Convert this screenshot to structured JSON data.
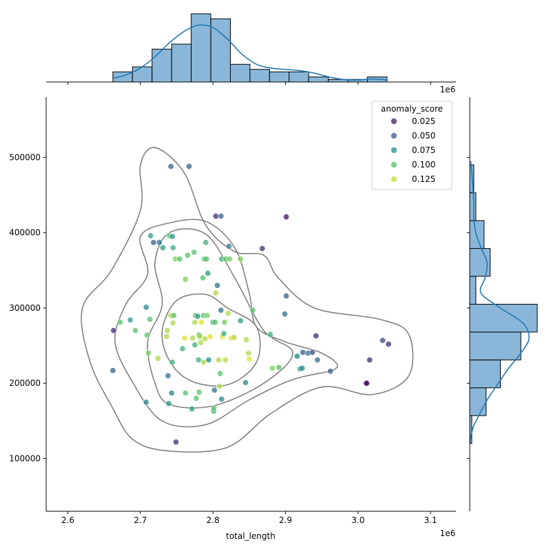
{
  "chart_data": {
    "type": "scatter",
    "title": "",
    "xlabel": "total_length",
    "ylabel": "",
    "x_offset_label": "1e6",
    "top_offset_label": "1e6",
    "xlim": [
      2.57,
      3.135
    ],
    "ylim": [
      30000,
      580000
    ],
    "x_ticks": [
      2.6,
      2.7,
      2.8,
      2.9,
      3.0,
      3.1
    ],
    "x_tick_labels": [
      "2.6",
      "2.7",
      "2.8",
      "2.9",
      "3.0",
      "3.1"
    ],
    "y_ticks": [
      100000,
      200000,
      300000,
      400000,
      500000
    ],
    "y_tick_labels": [
      "100000",
      "200000",
      "300000",
      "400000",
      "500000"
    ],
    "grid": false,
    "legend": {
      "title": "anomaly_score",
      "placement": "top-right",
      "entries": [
        {
          "label": "0.025",
          "value": 0.025
        },
        {
          "label": "0.050",
          "value": 0.05
        },
        {
          "label": "0.075",
          "value": 0.075
        },
        {
          "label": "0.100",
          "value": 0.1
        },
        {
          "label": "0.125",
          "value": 0.125
        }
      ]
    },
    "colors": {
      "hist_fill": "#8ab7d9",
      "kde_line": "#1f77b4",
      "contour": "#808080",
      "viridis": [
        "#440154",
        "#3b528b",
        "#21918c",
        "#5ec962",
        "#fde725"
      ]
    },
    "points": [
      {
        "x": 2.663,
        "y": 270000,
        "s": 0.03
      },
      {
        "x": 2.662,
        "y": 217000,
        "s": 0.05
      },
      {
        "x": 2.672,
        "y": 281000,
        "s": 0.1
      },
      {
        "x": 2.686,
        "y": 284000,
        "s": 0.08
      },
      {
        "x": 2.693,
        "y": 270000,
        "s": 0.1
      },
      {
        "x": 2.708,
        "y": 175000,
        "s": 0.07
      },
      {
        "x": 2.708,
        "y": 301000,
        "s": 0.07
      },
      {
        "x": 2.709,
        "y": 264000,
        "s": 0.1
      },
      {
        "x": 2.711,
        "y": 240000,
        "s": 0.11
      },
      {
        "x": 2.713,
        "y": 285000,
        "s": 0.1
      },
      {
        "x": 2.714,
        "y": 396000,
        "s": 0.08
      },
      {
        "x": 2.718,
        "y": 387000,
        "s": 0.05
      },
      {
        "x": 2.724,
        "y": 233000,
        "s": 0.12
      },
      {
        "x": 2.726,
        "y": 387000,
        "s": 0.06
      },
      {
        "x": 2.731,
        "y": 380000,
        "s": 0.08
      },
      {
        "x": 2.736,
        "y": 262000,
        "s": 0.12
      },
      {
        "x": 2.737,
        "y": 270000,
        "s": 0.12
      },
      {
        "x": 2.738,
        "y": 210000,
        "s": 0.06
      },
      {
        "x": 2.739,
        "y": 173000,
        "s": 0.08
      },
      {
        "x": 2.74,
        "y": 396000,
        "s": 0.1
      },
      {
        "x": 2.742,
        "y": 290000,
        "s": 0.12
      },
      {
        "x": 2.742,
        "y": 488000,
        "s": 0.05
      },
      {
        "x": 2.743,
        "y": 187000,
        "s": 0.07
      },
      {
        "x": 2.744,
        "y": 395000,
        "s": 0.08
      },
      {
        "x": 2.744,
        "y": 228000,
        "s": 0.09
      },
      {
        "x": 2.745,
        "y": 280000,
        "s": 0.12
      },
      {
        "x": 2.745,
        "y": 380000,
        "s": 0.09
      },
      {
        "x": 2.746,
        "y": 290000,
        "s": 0.1
      },
      {
        "x": 2.748,
        "y": 365000,
        "s": 0.11
      },
      {
        "x": 2.749,
        "y": 122000,
        "s": 0.03
      },
      {
        "x": 2.754,
        "y": 365000,
        "s": 0.1
      },
      {
        "x": 2.758,
        "y": 246000,
        "s": 0.09
      },
      {
        "x": 2.761,
        "y": 260000,
        "s": 0.13
      },
      {
        "x": 2.762,
        "y": 187000,
        "s": 0.1
      },
      {
        "x": 2.762,
        "y": 338000,
        "s": 0.11
      },
      {
        "x": 2.765,
        "y": 370000,
        "s": 0.1
      },
      {
        "x": 2.767,
        "y": 488000,
        "s": 0.05
      },
      {
        "x": 2.771,
        "y": 166000,
        "s": 0.08
      },
      {
        "x": 2.772,
        "y": 260000,
        "s": 0.12
      },
      {
        "x": 2.774,
        "y": 374000,
        "s": 0.1
      },
      {
        "x": 2.775,
        "y": 251000,
        "s": 0.09
      },
      {
        "x": 2.775,
        "y": 281000,
        "s": 0.12
      },
      {
        "x": 2.776,
        "y": 290000,
        "s": 0.1
      },
      {
        "x": 2.777,
        "y": 180000,
        "s": 0.1
      },
      {
        "x": 2.779,
        "y": 289000,
        "s": 0.08
      },
      {
        "x": 2.78,
        "y": 231000,
        "s": 0.09
      },
      {
        "x": 2.781,
        "y": 264000,
        "s": 0.09
      },
      {
        "x": 2.781,
        "y": 188000,
        "s": 0.1
      },
      {
        "x": 2.782,
        "y": 262000,
        "s": 0.12
      },
      {
        "x": 2.783,
        "y": 254000,
        "s": 0.12
      },
      {
        "x": 2.784,
        "y": 281000,
        "s": 0.13
      },
      {
        "x": 2.786,
        "y": 340000,
        "s": 0.1
      },
      {
        "x": 2.787,
        "y": 228000,
        "s": 0.12
      },
      {
        "x": 2.787,
        "y": 290000,
        "s": 0.1
      },
      {
        "x": 2.788,
        "y": 365000,
        "s": 0.1
      },
      {
        "x": 2.789,
        "y": 259000,
        "s": 0.12
      },
      {
        "x": 2.79,
        "y": 387000,
        "s": 0.09
      },
      {
        "x": 2.791,
        "y": 365000,
        "s": 0.1
      },
      {
        "x": 2.792,
        "y": 290000,
        "s": 0.11
      },
      {
        "x": 2.793,
        "y": 346000,
        "s": 0.08
      },
      {
        "x": 2.794,
        "y": 231000,
        "s": 0.07
      },
      {
        "x": 2.796,
        "y": 262000,
        "s": 0.13
      },
      {
        "x": 2.8,
        "y": 281000,
        "s": 0.09
      },
      {
        "x": 2.801,
        "y": 163000,
        "s": 0.09
      },
      {
        "x": 2.801,
        "y": 167000,
        "s": 0.1
      },
      {
        "x": 2.802,
        "y": 191000,
        "s": 0.06
      },
      {
        "x": 2.803,
        "y": 281000,
        "s": 0.1
      },
      {
        "x": 2.804,
        "y": 422000,
        "s": 0.03
      },
      {
        "x": 2.804,
        "y": 320000,
        "s": 0.12
      },
      {
        "x": 2.806,
        "y": 330000,
        "s": 0.06
      },
      {
        "x": 2.808,
        "y": 231000,
        "s": 0.12
      },
      {
        "x": 2.809,
        "y": 196000,
        "s": 0.12
      },
      {
        "x": 2.81,
        "y": 213000,
        "s": 0.1
      },
      {
        "x": 2.811,
        "y": 297000,
        "s": 0.06
      },
      {
        "x": 2.811,
        "y": 422000,
        "s": 0.05
      },
      {
        "x": 2.812,
        "y": 365000,
        "s": 0.09
      },
      {
        "x": 2.812,
        "y": 179000,
        "s": 0.07
      },
      {
        "x": 2.813,
        "y": 262000,
        "s": 0.13
      },
      {
        "x": 2.815,
        "y": 266000,
        "s": 0.09
      },
      {
        "x": 2.816,
        "y": 281000,
        "s": 0.11
      },
      {
        "x": 2.817,
        "y": 231000,
        "s": 0.12
      },
      {
        "x": 2.818,
        "y": 365000,
        "s": 0.1
      },
      {
        "x": 2.821,
        "y": 293000,
        "s": 0.12
      },
      {
        "x": 2.822,
        "y": 382000,
        "s": 0.06
      },
      {
        "x": 2.823,
        "y": 365000,
        "s": 0.11
      },
      {
        "x": 2.825,
        "y": 260000,
        "s": 0.13
      },
      {
        "x": 2.829,
        "y": 261000,
        "s": 0.12
      },
      {
        "x": 2.838,
        "y": 283000,
        "s": 0.08
      },
      {
        "x": 2.838,
        "y": 365000,
        "s": 0.11
      },
      {
        "x": 2.845,
        "y": 201000,
        "s": 0.07
      },
      {
        "x": 2.846,
        "y": 258000,
        "s": 0.12
      },
      {
        "x": 2.849,
        "y": 240000,
        "s": 0.12
      },
      {
        "x": 2.85,
        "y": 232000,
        "s": 0.13
      },
      {
        "x": 2.855,
        "y": 297000,
        "s": 0.1
      },
      {
        "x": 2.868,
        "y": 379000,
        "s": 0.03
      },
      {
        "x": 2.879,
        "y": 265000,
        "s": 0.09
      },
      {
        "x": 2.882,
        "y": 220000,
        "s": 0.11
      },
      {
        "x": 2.891,
        "y": 221000,
        "s": 0.1
      },
      {
        "x": 2.899,
        "y": 292000,
        "s": 0.06
      },
      {
        "x": 2.901,
        "y": 316000,
        "s": 0.05
      },
      {
        "x": 2.901,
        "y": 421000,
        "s": 0.02
      },
      {
        "x": 2.916,
        "y": 236000,
        "s": 0.07
      },
      {
        "x": 2.92,
        "y": 219000,
        "s": 0.08
      },
      {
        "x": 2.923,
        "y": 220000,
        "s": 0.07
      },
      {
        "x": 2.924,
        "y": 241000,
        "s": 0.05
      },
      {
        "x": 2.931,
        "y": 240000,
        "s": 0.06
      },
      {
        "x": 2.937,
        "y": 241000,
        "s": 0.04
      },
      {
        "x": 2.942,
        "y": 263000,
        "s": 0.03
      },
      {
        "x": 2.944,
        "y": 231000,
        "s": 0.06
      },
      {
        "x": 2.962,
        "y": 216000,
        "s": 0.05
      },
      {
        "x": 3.011,
        "y": 200000,
        "s": 0.02
      },
      {
        "x": 3.012,
        "y": 200000,
        "s": 0.02
      },
      {
        "x": 3.016,
        "y": 231000,
        "s": 0.03
      },
      {
        "x": 3.034,
        "y": 257000,
        "s": 0.04
      },
      {
        "x": 3.042,
        "y": 252000,
        "s": 0.03
      }
    ],
    "top_hist": {
      "bins": [
        2.662,
        2.689,
        2.716,
        2.743,
        2.77,
        2.797,
        2.824,
        2.851,
        2.878,
        2.905,
        2.932,
        2.959,
        2.986,
        3.013,
        3.04
      ],
      "counts": [
        4,
        6,
        13,
        15,
        27,
        25,
        7,
        5,
        4,
        4,
        2,
        1,
        1,
        2
      ],
      "kde": [
        [
          2.662,
          1.5
        ],
        [
          2.68,
          2.8
        ],
        [
          2.7,
          5.5
        ],
        [
          2.72,
          10
        ],
        [
          2.74,
          15.5
        ],
        [
          2.76,
          20
        ],
        [
          2.78,
          22.5
        ],
        [
          2.8,
          21.5
        ],
        [
          2.82,
          17
        ],
        [
          2.84,
          11
        ],
        [
          2.86,
          7
        ],
        [
          2.88,
          5.5
        ],
        [
          2.9,
          5
        ],
        [
          2.92,
          4.5
        ],
        [
          2.94,
          3.5
        ],
        [
          2.96,
          2
        ],
        [
          2.98,
          1
        ],
        [
          3.0,
          0.8
        ],
        [
          3.02,
          1.2
        ],
        [
          3.04,
          0.8
        ]
      ]
    },
    "right_hist": {
      "bins": [
        120000,
        157000,
        194000,
        231000,
        268000,
        305000,
        342000,
        379000,
        416000,
        453000,
        490000
      ],
      "counts": [
        1,
        8,
        15,
        25,
        33,
        3,
        10,
        7,
        3,
        2
      ],
      "kde": [
        [
          121000,
          0
        ],
        [
          140000,
          1.5
        ],
        [
          160000,
          5
        ],
        [
          180000,
          9
        ],
        [
          200000,
          14
        ],
        [
          220000,
          19
        ],
        [
          240000,
          25
        ],
        [
          260000,
          29
        ],
        [
          280000,
          26
        ],
        [
          300000,
          15
        ],
        [
          320000,
          5.5
        ],
        [
          340000,
          7.5
        ],
        [
          360000,
          8.5
        ],
        [
          380000,
          5.5
        ],
        [
          400000,
          3
        ],
        [
          420000,
          2
        ],
        [
          440000,
          2
        ],
        [
          460000,
          1.5
        ],
        [
          480000,
          1
        ],
        [
          495000,
          0.5
        ]
      ]
    },
    "contours": [
      [
        [
          2.69,
          125000
        ],
        [
          2.74,
          110000
        ],
        [
          2.82,
          115000
        ],
        [
          2.88,
          160000
        ],
        [
          2.95,
          195000
        ],
        [
          3.02,
          185000
        ],
        [
          3.07,
          210000
        ],
        [
          3.07,
          265000
        ],
        [
          3.03,
          285000
        ],
        [
          2.94,
          300000
        ],
        [
          2.89,
          340000
        ],
        [
          2.87,
          370000
        ],
        [
          2.83,
          375000
        ],
        [
          2.79,
          410000
        ],
        [
          2.76,
          480000
        ],
        [
          2.72,
          513000
        ],
        [
          2.7,
          490000
        ],
        [
          2.7,
          430000
        ],
        [
          2.66,
          350000
        ],
        [
          2.62,
          300000
        ],
        [
          2.63,
          230000
        ],
        [
          2.66,
          170000
        ]
      ],
      [
        [
          2.73,
          150000
        ],
        [
          2.79,
          145000
        ],
        [
          2.85,
          178000
        ],
        [
          2.91,
          205000
        ],
        [
          2.97,
          220000
        ],
        [
          2.95,
          240000
        ],
        [
          2.9,
          255000
        ],
        [
          2.86,
          275000
        ],
        [
          2.85,
          320000
        ],
        [
          2.83,
          380000
        ],
        [
          2.79,
          415000
        ],
        [
          2.74,
          413000
        ],
        [
          2.7,
          395000
        ],
        [
          2.71,
          345000
        ],
        [
          2.68,
          305000
        ],
        [
          2.665,
          255000
        ],
        [
          2.69,
          200000
        ]
      ],
      [
        [
          2.74,
          172000
        ],
        [
          2.8,
          170000
        ],
        [
          2.87,
          200000
        ],
        [
          2.91,
          240000
        ],
        [
          2.87,
          270000
        ],
        [
          2.83,
          340000
        ],
        [
          2.79,
          398000
        ],
        [
          2.74,
          400000
        ],
        [
          2.72,
          360000
        ],
        [
          2.73,
          305000
        ],
        [
          2.71,
          255000
        ],
        [
          2.72,
          200000
        ]
      ],
      [
        [
          2.77,
          203000
        ],
        [
          2.82,
          198000
        ],
        [
          2.86,
          228000
        ],
        [
          2.86,
          275000
        ],
        [
          2.82,
          300000
        ],
        [
          2.79,
          318000
        ],
        [
          2.75,
          310000
        ],
        [
          2.73,
          270000
        ],
        [
          2.74,
          230000
        ]
      ]
    ]
  }
}
